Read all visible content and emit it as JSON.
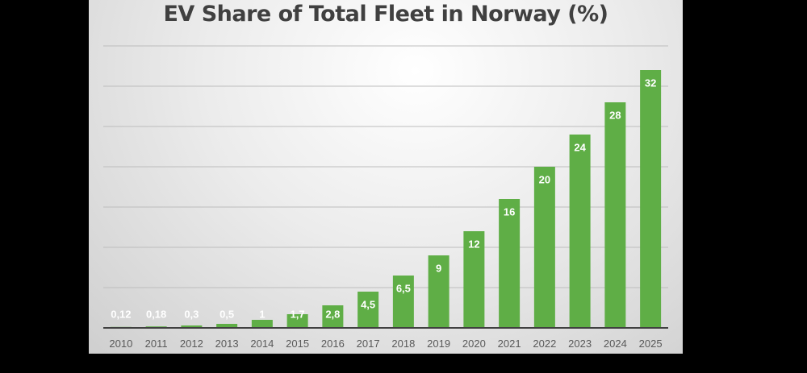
{
  "chart_data": {
    "type": "bar",
    "title": "EV Share of Total Fleet in Norway (%)",
    "xlabel": "",
    "ylabel": "",
    "categories": [
      "2010",
      "2011",
      "2012",
      "2013",
      "2014",
      "2015",
      "2016",
      "2017",
      "2018",
      "2019",
      "2020",
      "2021",
      "2022",
      "2023",
      "2024",
      "2025"
    ],
    "values": [
      0.12,
      0.18,
      0.3,
      0.5,
      1,
      1.7,
      2.8,
      4.5,
      6.5,
      9,
      12,
      16,
      20,
      24,
      28,
      32
    ],
    "data_labels": [
      "0,12",
      "0,18",
      "0,3",
      "0,5",
      "1",
      "1,7",
      "2,8",
      "4,5",
      "6,5",
      "9",
      "12",
      "16",
      "20",
      "24",
      "28",
      "32"
    ],
    "ylim": [
      0,
      35
    ],
    "gridline_step": 5,
    "grid": true,
    "legend": "none",
    "colors": {
      "bar": "#5fae46",
      "grid": "#bdbdbd",
      "axis": "#404040",
      "background": "#000000"
    }
  }
}
